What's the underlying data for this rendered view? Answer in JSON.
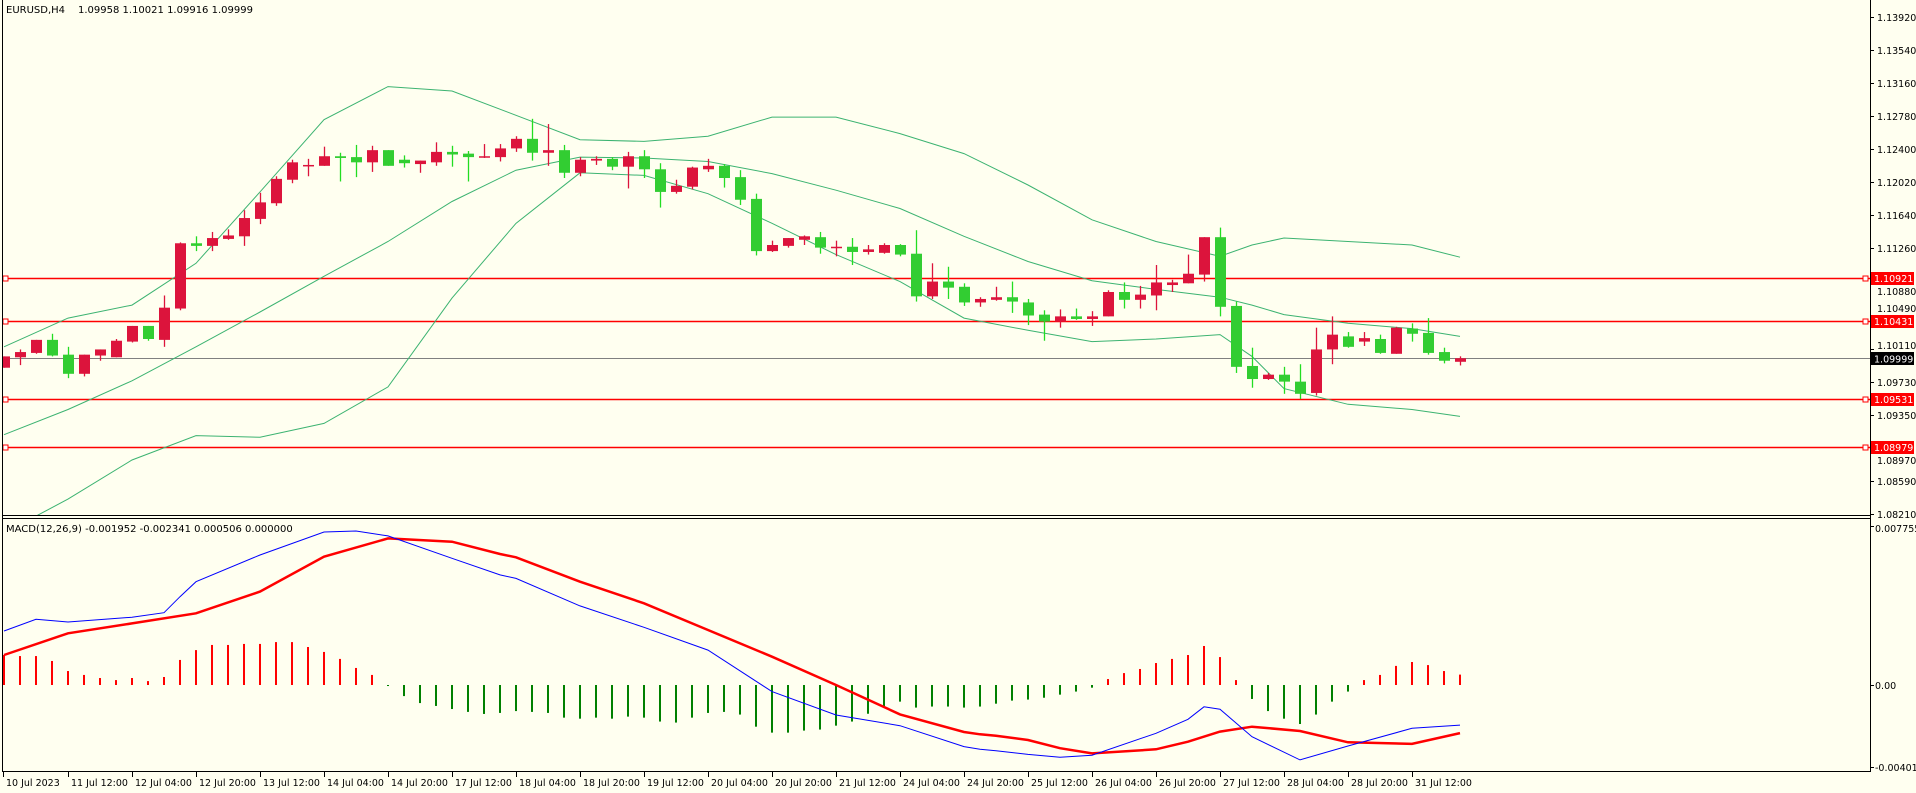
{
  "header": {
    "symbol_label": "EURUSD,H4",
    "ohlc_label": "1.09958 1.10021 1.09916 1.09999"
  },
  "indicator": {
    "label": "MACD(12,26,9) -0.001952 -0.002341 0.000506 0.000000"
  },
  "colors": {
    "background": "#FFFFF0",
    "bull_candle": "#DC143C",
    "bear_candle": "#32CD32",
    "bear_wick": "#22DD22",
    "bands": "#3CB371",
    "hline": "#FF0000",
    "price_line": "#808080",
    "macd_main": "#0000FF",
    "macd_signal": "#FF0000",
    "hist_pos": "#FF0000",
    "hist_neg": "#008000"
  },
  "chart_data": {
    "main": {
      "type": "candlestick",
      "title": "EURUSD,H4",
      "ylim": [
        1.0821,
        1.1392
      ],
      "price_ticks": [
        "1.13920",
        "1.13540",
        "1.13160",
        "1.12780",
        "1.12400",
        "1.12020",
        "1.11640",
        "1.11260",
        "1.10880",
        "1.10490",
        "1.10110",
        "1.09730",
        "1.09350",
        "1.08970",
        "1.08590",
        "1.08210"
      ],
      "current_price": "1.09999",
      "horizontal_lines": [
        "1.10921",
        "1.10431",
        "1.09531",
        "1.08979"
      ],
      "candles_ohlc": [
        [
          1.0989,
          1.1002,
          1.0989,
          1.1002
        ],
        [
          1.1001,
          1.101,
          1.0992,
          1.1007
        ],
        [
          1.1006,
          1.1021,
          1.1005,
          1.1021
        ],
        [
          1.1021,
          1.1028,
          1.1002,
          1.1003
        ],
        [
          1.1004,
          1.1013,
          1.0977,
          1.0982
        ],
        [
          1.0982,
          1.1004,
          1.0979,
          1.1004
        ],
        [
          1.1003,
          1.101,
          1.0997,
          1.101
        ],
        [
          1.1001,
          1.1022,
          1.1001,
          1.102
        ],
        [
          1.1019,
          1.1037,
          1.1018,
          1.1037
        ],
        [
          1.1037,
          1.1037,
          1.102,
          1.1022
        ],
        [
          1.1021,
          1.1072,
          1.1013,
          1.1058
        ],
        [
          1.1057,
          1.1133,
          1.1055,
          1.1132
        ],
        [
          1.1132,
          1.114,
          1.1123,
          1.1129
        ],
        [
          1.1129,
          1.1145,
          1.1123,
          1.1138
        ],
        [
          1.1137,
          1.1148,
          1.1136,
          1.1141
        ],
        [
          1.114,
          1.117,
          1.1129,
          1.1161
        ],
        [
          1.116,
          1.119,
          1.1154,
          1.1179
        ],
        [
          1.1178,
          1.1209,
          1.1175,
          1.1206
        ],
        [
          1.1205,
          1.1228,
          1.1201,
          1.1225
        ],
        [
          1.1222,
          1.1229,
          1.1209,
          1.1222
        ],
        [
          1.1221,
          1.1243,
          1.1221,
          1.1232
        ],
        [
          1.1232,
          1.1236,
          1.1203,
          1.123
        ],
        [
          1.1231,
          1.1245,
          1.1208,
          1.1225
        ],
        [
          1.1225,
          1.1244,
          1.1214,
          1.1239
        ],
        [
          1.1239,
          1.1239,
          1.1221,
          1.1221
        ],
        [
          1.1228,
          1.1233,
          1.1219,
          1.1224
        ],
        [
          1.1223,
          1.1227,
          1.1213,
          1.1227
        ],
        [
          1.1225,
          1.1248,
          1.1221,
          1.1237
        ],
        [
          1.1237,
          1.1244,
          1.122,
          1.1234
        ],
        [
          1.1235,
          1.1238,
          1.1203,
          1.1231
        ],
        [
          1.1232,
          1.1246,
          1.123,
          1.1232
        ],
        [
          1.1231,
          1.1246,
          1.1226,
          1.1241
        ],
        [
          1.1241,
          1.1255,
          1.1237,
          1.1252
        ],
        [
          1.1252,
          1.1275,
          1.1227,
          1.1236
        ],
        [
          1.1236,
          1.1269,
          1.1221,
          1.1239
        ],
        [
          1.1239,
          1.1245,
          1.1207,
          1.1213
        ],
        [
          1.1213,
          1.1231,
          1.1209,
          1.1228
        ],
        [
          1.1227,
          1.1232,
          1.1222,
          1.1229
        ],
        [
          1.1229,
          1.1231,
          1.1216,
          1.122
        ],
        [
          1.122,
          1.1237,
          1.1195,
          1.1232
        ],
        [
          1.1232,
          1.1239,
          1.1207,
          1.1217
        ],
        [
          1.1217,
          1.1224,
          1.1173,
          1.1191
        ],
        [
          1.1191,
          1.1205,
          1.1189,
          1.1198
        ],
        [
          1.1197,
          1.122,
          1.1194,
          1.1219
        ],
        [
          1.1217,
          1.1229,
          1.1214,
          1.1221
        ],
        [
          1.1221,
          1.1223,
          1.1196,
          1.1207
        ],
        [
          1.1208,
          1.1216,
          1.1176,
          1.1182
        ],
        [
          1.1183,
          1.1189,
          1.1118,
          1.1123
        ],
        [
          1.1123,
          1.1135,
          1.1122,
          1.113
        ],
        [
          1.1129,
          1.1138,
          1.1127,
          1.1138
        ],
        [
          1.1136,
          1.1141,
          1.113,
          1.114
        ],
        [
          1.1139,
          1.1145,
          1.112,
          1.1127
        ],
        [
          1.1128,
          1.1135,
          1.1117,
          1.1128
        ],
        [
          1.1128,
          1.1138,
          1.1107,
          1.1122
        ],
        [
          1.1122,
          1.113,
          1.1119,
          1.1125
        ],
        [
          1.1121,
          1.1132,
          1.112,
          1.113
        ],
        [
          1.113,
          1.1131,
          1.1117,
          1.1119
        ],
        [
          1.112,
          1.1147,
          1.1065,
          1.1071
        ],
        [
          1.1071,
          1.1109,
          1.1068,
          1.1088
        ],
        [
          1.1088,
          1.1105,
          1.1068,
          1.1081
        ],
        [
          1.1082,
          1.1086,
          1.106,
          1.1064
        ],
        [
          1.1064,
          1.107,
          1.1059,
          1.1068
        ],
        [
          1.1067,
          1.1082,
          1.1066,
          1.107
        ],
        [
          1.107,
          1.1088,
          1.1052,
          1.1065
        ],
        [
          1.1064,
          1.1068,
          1.1038,
          1.1049
        ],
        [
          1.105,
          1.1055,
          1.102,
          1.1042
        ],
        [
          1.1042,
          1.1056,
          1.1035,
          1.1048
        ],
        [
          1.1048,
          1.1057,
          1.1044,
          1.1045
        ],
        [
          1.1045,
          1.1054,
          1.1037,
          1.1048
        ],
        [
          1.1048,
          1.1078,
          1.1048,
          1.1076
        ],
        [
          1.1076,
          1.1087,
          1.1057,
          1.1067
        ],
        [
          1.1067,
          1.1083,
          1.1057,
          1.1073
        ],
        [
          1.1072,
          1.1107,
          1.1055,
          1.1087
        ],
        [
          1.1084,
          1.109,
          1.1076,
          1.1087
        ],
        [
          1.1086,
          1.1119,
          1.1086,
          1.1097
        ],
        [
          1.1096,
          1.1139,
          1.1088,
          1.1139
        ],
        [
          1.1139,
          1.115,
          1.1048,
          1.1059
        ],
        [
          1.106,
          1.1065,
          1.0983,
          1.099
        ],
        [
          1.0991,
          1.1012,
          1.0966,
          1.0976
        ],
        [
          1.0976,
          1.0983,
          1.0975,
          1.0981
        ],
        [
          1.0981,
          1.099,
          1.0959,
          1.0973
        ],
        [
          1.0973,
          1.0993,
          1.0953,
          1.0959
        ],
        [
          1.096,
          1.1035,
          1.0957,
          1.101
        ],
        [
          1.101,
          1.1048,
          1.0993,
          1.1027
        ],
        [
          1.1025,
          1.103,
          1.1012,
          1.1013
        ],
        [
          1.1019,
          1.103,
          1.1014,
          1.1023
        ],
        [
          1.1022,
          1.1027,
          1.1005,
          1.1006
        ],
        [
          1.1005,
          1.1036,
          1.1005,
          1.1035
        ],
        [
          1.1034,
          1.104,
          1.1019,
          1.1028
        ],
        [
          1.1029,
          1.1046,
          1.1004,
          1.1006
        ],
        [
          1.1007,
          1.1012,
          1.0994,
          1.0997
        ],
        [
          1.09958,
          1.10021,
          1.09916,
          1.09999
        ]
      ],
      "bollinger_bar_index": [
        0,
        4,
        8,
        12,
        16,
        20,
        24,
        28,
        32,
        36,
        40,
        44,
        48,
        52,
        56,
        60,
        64,
        68,
        72,
        76,
        78,
        80,
        84,
        88,
        91
      ],
      "bollinger_upper": [
        1.1013,
        1.1046,
        1.1061,
        1.1109,
        1.1191,
        1.1274,
        1.1312,
        1.1307,
        1.1279,
        1.1251,
        1.1249,
        1.1255,
        1.1277,
        1.1277,
        1.1258,
        1.1235,
        1.1199,
        1.1159,
        1.1134,
        1.1117,
        1.113,
        1.1138,
        1.1134,
        1.113,
        1.1116
      ],
      "bollinger_middle": [
        1.0912,
        1.0941,
        1.0974,
        1.1013,
        1.1053,
        1.1094,
        1.1134,
        1.118,
        1.1216,
        1.1231,
        1.123,
        1.1226,
        1.1212,
        1.1193,
        1.1172,
        1.114,
        1.1111,
        1.1089,
        1.1079,
        1.107,
        1.1061,
        1.105,
        1.104,
        1.1034,
        1.1025
      ],
      "bollinger_lower": [
        1.0799,
        1.0838,
        1.0883,
        1.0911,
        1.0909,
        1.0925,
        1.0967,
        1.1069,
        1.1155,
        1.1213,
        1.121,
        1.1189,
        1.1155,
        1.1119,
        1.1088,
        1.1046,
        1.1032,
        1.1019,
        1.1022,
        1.1027,
        1.1002,
        1.0965,
        1.0947,
        1.0941,
        1.0933
      ]
    },
    "macd": {
      "type": "line+bar",
      "title": "MACD(12,26,9)",
      "ylim": [
        -0.004017,
        0.007755
      ],
      "axis_labels": [
        "0.007755",
        "0.00",
        "-0.004017"
      ],
      "main_points": [
        [
          0,
          0.00263
        ],
        [
          2,
          0.0032
        ],
        [
          4,
          0.00307
        ],
        [
          8,
          0.0033
        ],
        [
          10,
          0.00352
        ],
        [
          11,
          0.0043
        ],
        [
          12,
          0.00503
        ],
        [
          16,
          0.00633
        ],
        [
          20,
          0.00745
        ],
        [
          22,
          0.0075
        ],
        [
          24,
          0.00726
        ],
        [
          28,
          0.00617
        ],
        [
          31,
          0.00536
        ],
        [
          32,
          0.00519
        ],
        [
          36,
          0.00385
        ],
        [
          40,
          0.00281
        ],
        [
          44,
          0.0017
        ],
        [
          48,
          -0.00032
        ],
        [
          52,
          -0.00146
        ],
        [
          56,
          -0.00198
        ],
        [
          60,
          -0.003
        ],
        [
          61,
          -0.00313
        ],
        [
          62,
          -0.0032
        ],
        [
          64,
          -0.00338
        ],
        [
          66,
          -0.00352
        ],
        [
          68,
          -0.00342
        ],
        [
          72,
          -0.00235
        ],
        [
          74,
          -0.00167
        ],
        [
          75,
          -0.00106
        ],
        [
          76,
          -0.00118
        ],
        [
          78,
          -0.00252
        ],
        [
          81,
          -0.00365
        ],
        [
          84,
          -0.00297
        ],
        [
          88,
          -0.00211
        ],
        [
          91,
          -0.001952
        ]
      ],
      "signal_points": [
        [
          0,
          0.00146
        ],
        [
          4,
          0.00252
        ],
        [
          8,
          0.003
        ],
        [
          12,
          0.00349
        ],
        [
          16,
          0.00455
        ],
        [
          20,
          0.00625
        ],
        [
          24,
          0.00714
        ],
        [
          28,
          0.00698
        ],
        [
          31,
          0.00638
        ],
        [
          32,
          0.00622
        ],
        [
          36,
          0.00503
        ],
        [
          40,
          0.00398
        ],
        [
          44,
          0.00268
        ],
        [
          48,
          0.00138
        ],
        [
          52,
          0.0
        ],
        [
          56,
          -0.00143
        ],
        [
          60,
          -0.00229
        ],
        [
          61,
          -0.0024
        ],
        [
          62,
          -0.00247
        ],
        [
          64,
          -0.00268
        ],
        [
          66,
          -0.00308
        ],
        [
          68,
          -0.00333
        ],
        [
          72,
          -0.00313
        ],
        [
          74,
          -0.00276
        ],
        [
          76,
          -0.00227
        ],
        [
          78,
          -0.00203
        ],
        [
          81,
          -0.00224
        ],
        [
          84,
          -0.00279
        ],
        [
          88,
          -0.00287
        ],
        [
          91,
          -0.002341
        ]
      ],
      "histogram": [
        0.00146,
        0.00141,
        0.00141,
        0.00117,
        0.00068,
        0.00049,
        0.00034,
        0.00024,
        0.00034,
        0.00019,
        0.00039,
        0.00122,
        0.0017,
        0.00195,
        0.00195,
        0.002,
        0.002,
        0.00209,
        0.00209,
        0.00185,
        0.00161,
        0.00127,
        0.00083,
        0.00049,
        -5e-05,
        -0.00054,
        -0.00088,
        -0.00102,
        -0.00117,
        -0.00131,
        -0.00141,
        -0.00136,
        -0.00127,
        -0.00131,
        -0.00136,
        -0.00159,
        -0.00164,
        -0.00159,
        -0.00164,
        -0.00154,
        -0.00159,
        -0.00178,
        -0.00183,
        -0.00159,
        -0.00136,
        -0.00131,
        -0.00144,
        -0.00203,
        -0.00232,
        -0.00232,
        -0.00222,
        -0.00217,
        -0.00198,
        -0.00178,
        -0.0014,
        -0.0011,
        -0.00081,
        -0.0011,
        -0.00105,
        -0.00105,
        -0.0011,
        -0.00105,
        -0.00091,
        -0.00076,
        -0.00071,
        -0.00062,
        -0.00047,
        -0.00032,
        -0.00013,
        0.00029,
        0.00058,
        0.00078,
        0.00107,
        0.00127,
        0.00146,
        0.0019,
        0.00136,
        0.00024,
        -0.00068,
        -0.00127,
        -0.00164,
        -0.0019,
        -0.00144,
        -0.00081,
        -0.00032,
        0.00024,
        0.00049,
        0.00093,
        0.00112,
        0.00097,
        0.00068,
        0.000506
      ]
    },
    "time_axis": [
      {
        "bar": 0,
        "label": "10 Jul 2023"
      },
      {
        "bar": 4,
        "label": "11 Jul 12:00"
      },
      {
        "bar": 8,
        "label": "12 Jul 04:00"
      },
      {
        "bar": 12,
        "label": "12 Jul 20:00"
      },
      {
        "bar": 16,
        "label": "13 Jul 12:00"
      },
      {
        "bar": 20,
        "label": "14 Jul 04:00"
      },
      {
        "bar": 24,
        "label": "14 Jul 20:00"
      },
      {
        "bar": 28,
        "label": "17 Jul 12:00"
      },
      {
        "bar": 32,
        "label": "18 Jul 04:00"
      },
      {
        "bar": 36,
        "label": "18 Jul 20:00"
      },
      {
        "bar": 40,
        "label": "19 Jul 12:00"
      },
      {
        "bar": 44,
        "label": "20 Jul 04:00"
      },
      {
        "bar": 48,
        "label": "20 Jul 20:00"
      },
      {
        "bar": 52,
        "label": "21 Jul 12:00"
      },
      {
        "bar": 56,
        "label": "24 Jul 04:00"
      },
      {
        "bar": 60,
        "label": "24 Jul 20:00"
      },
      {
        "bar": 64,
        "label": "25 Jul 12:00"
      },
      {
        "bar": 68,
        "label": "26 Jul 04:00"
      },
      {
        "bar": 72,
        "label": "26 Jul 20:00"
      },
      {
        "bar": 76,
        "label": "27 Jul 12:00"
      },
      {
        "bar": 80,
        "label": "28 Jul 04:00"
      },
      {
        "bar": 84,
        "label": "28 Jul 20:00"
      },
      {
        "bar": 88,
        "label": "31 Jul 12:00"
      }
    ]
  }
}
